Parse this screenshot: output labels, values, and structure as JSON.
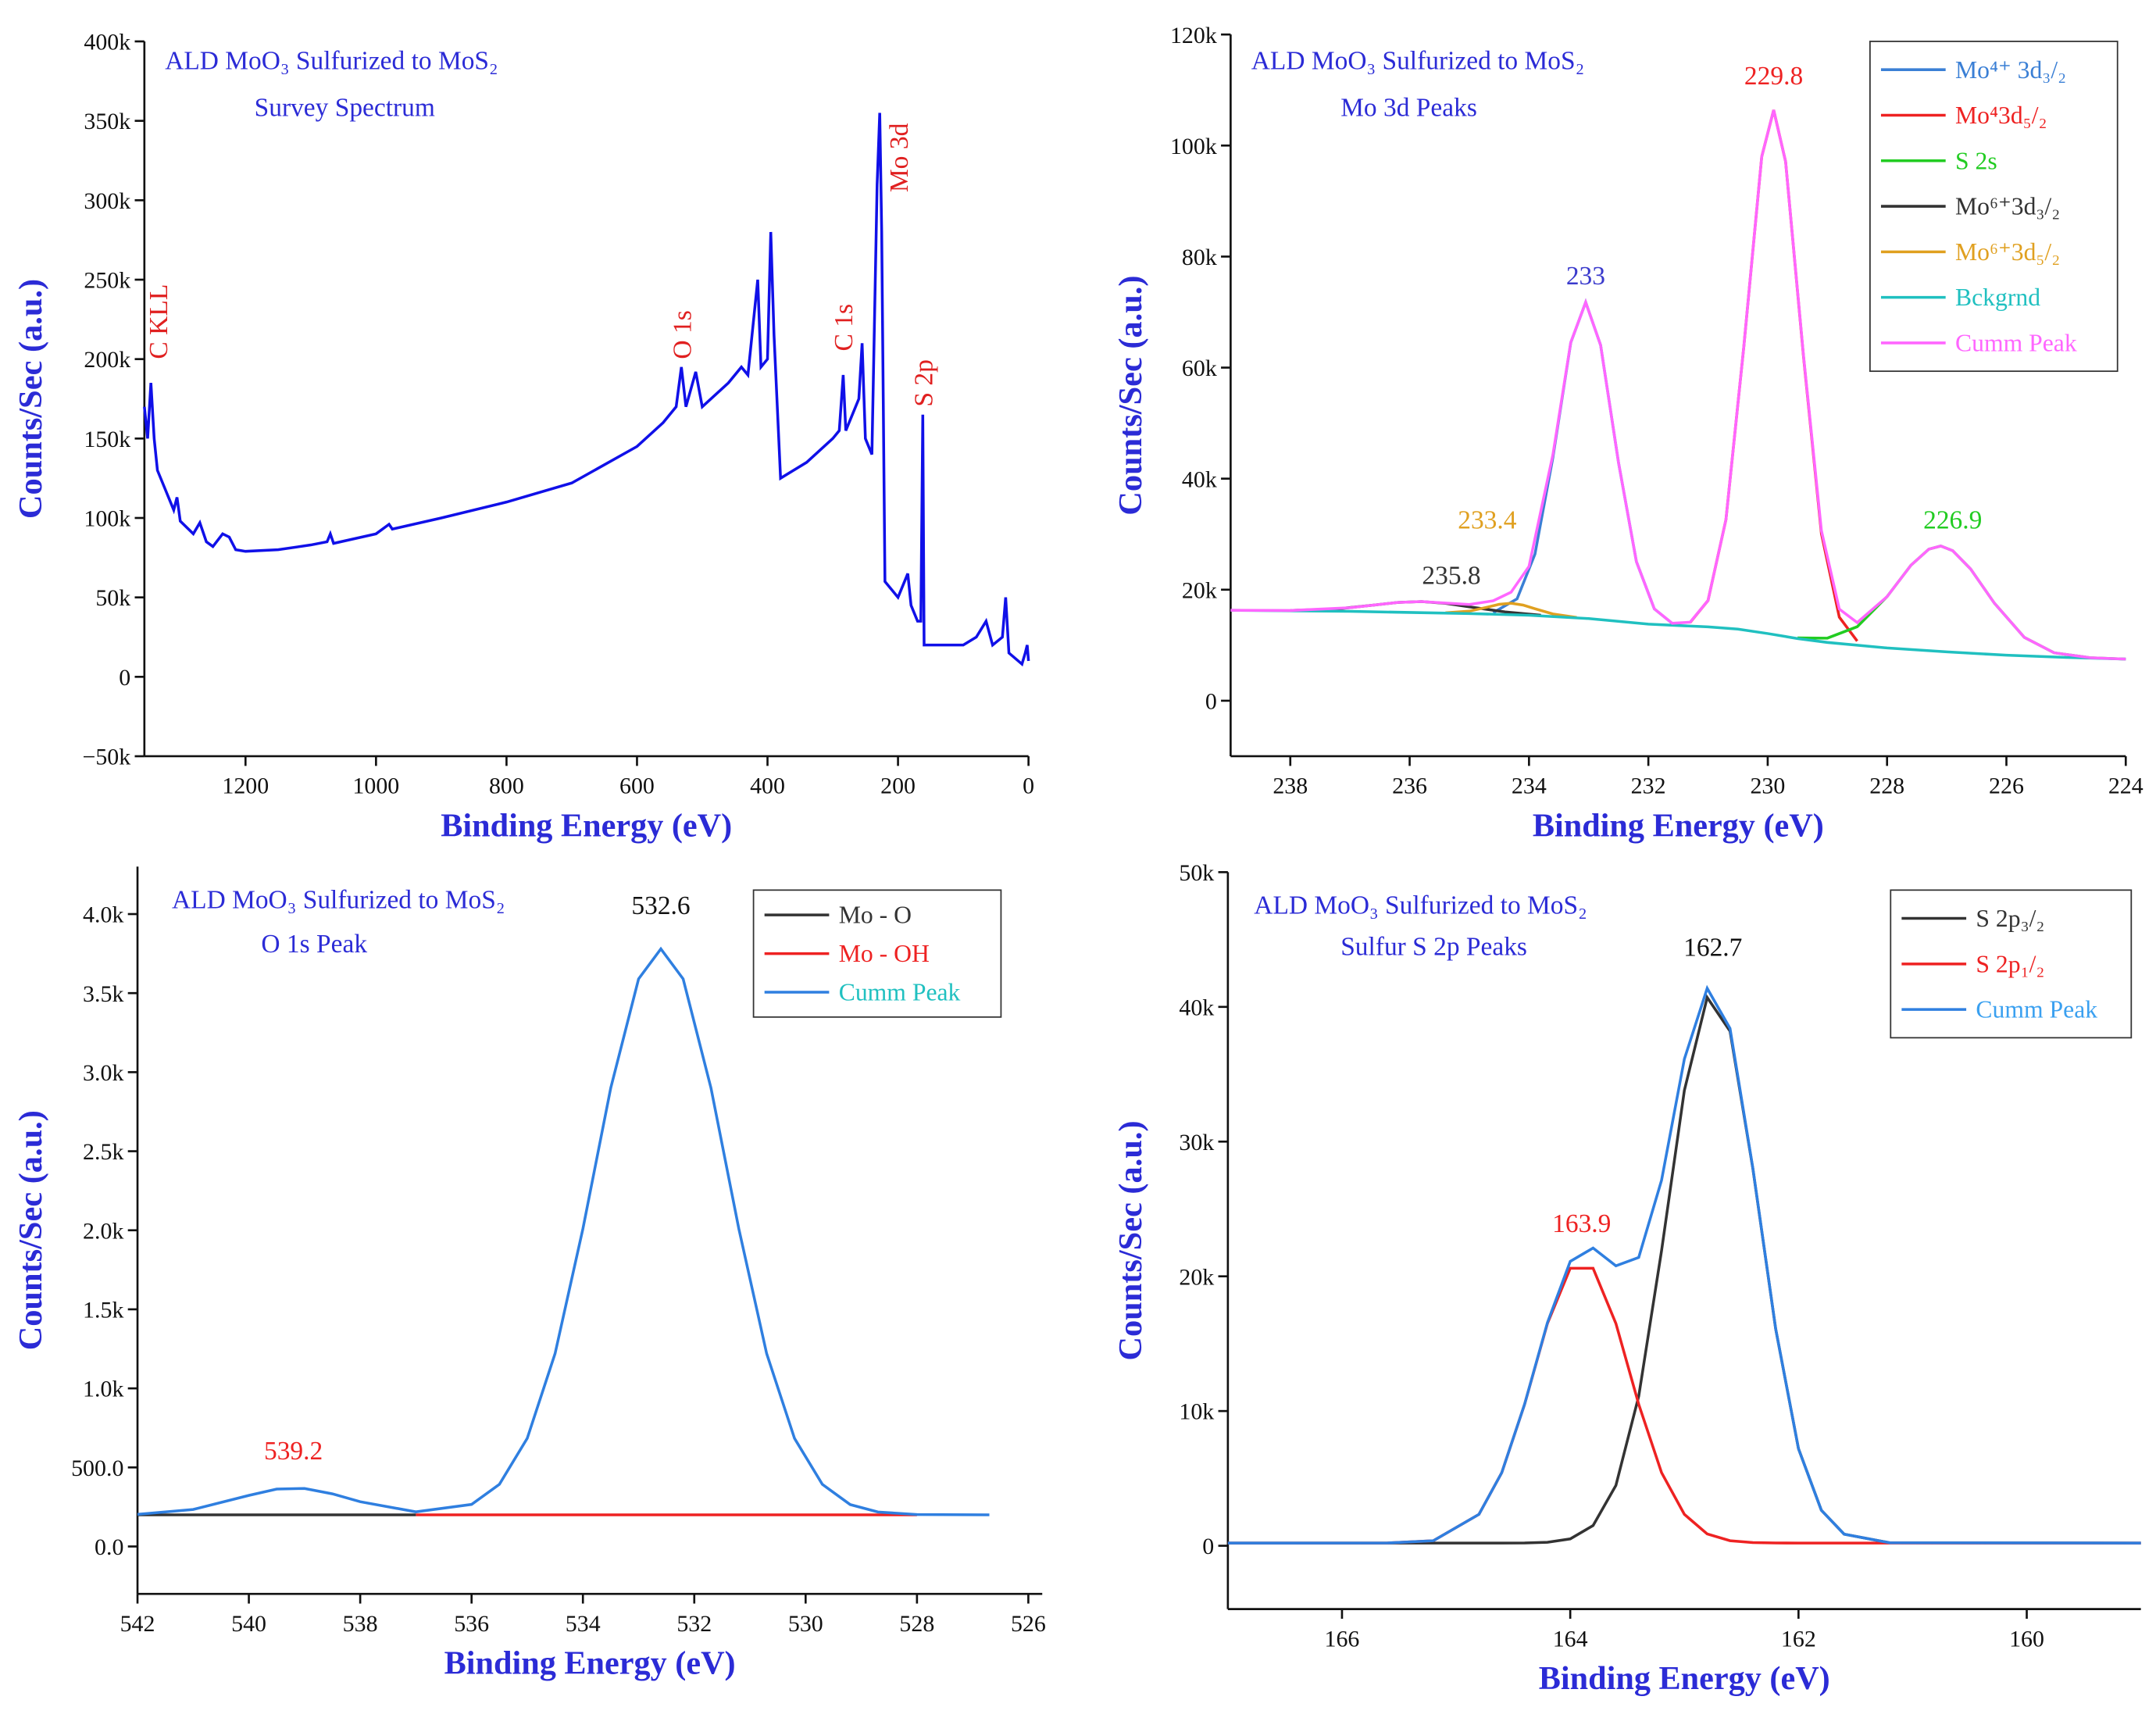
{
  "chart_data": [
    {
      "type": "line",
      "title": "ALD MoO₃ Sulfurized to MoS₂",
      "subtitle": "Survey Spectrum",
      "xlabel": "Binding Energy (eV)",
      "ylabel": "Counts/Sec (a.u.)",
      "xlim": [
        1355,
        0
      ],
      "xticks": [
        1200,
        1000,
        800,
        600,
        400,
        200,
        0
      ],
      "ylim": [
        -50000,
        400000
      ],
      "yticks": [
        {
          "value": -50000,
          "label": "−50k"
        },
        0,
        {
          "value": 50000,
          "label": "50k"
        },
        {
          "value": 100000,
          "label": "100k"
        },
        {
          "value": 150000,
          "label": "150k"
        },
        {
          "value": 200000,
          "label": "200k"
        },
        {
          "value": 250000,
          "label": "250k"
        },
        {
          "value": 300000,
          "label": "300k"
        },
        {
          "value": 350000,
          "label": "350k"
        },
        {
          "value": 400000,
          "label": "400k"
        }
      ],
      "legend": false,
      "series": [
        {
          "name": "Survey",
          "color": "#1010e8",
          "x": [
            1355,
            1350,
            1345,
            1340,
            1335,
            1320,
            1310,
            1305,
            1300,
            1280,
            1270,
            1260,
            1250,
            1235,
            1225,
            1215,
            1200,
            1150,
            1100,
            1075,
            1070,
            1065,
            1000,
            980,
            975,
            900,
            800,
            700,
            600,
            560,
            540,
            532,
            525,
            510,
            500,
            460,
            440,
            430,
            415,
            410,
            400,
            395,
            390,
            380,
            340,
            300,
            290,
            284,
            280,
            260,
            255,
            250,
            240,
            232,
            228,
            225,
            220,
            200,
            185,
            180,
            170,
            165,
            162,
            160,
            100,
            80,
            65,
            55,
            40,
            35,
            30,
            10,
            5,
            2,
            0
          ],
          "values": [
            170000,
            150000,
            185000,
            150000,
            130000,
            115000,
            105000,
            113000,
            98000,
            90000,
            97000,
            85000,
            82000,
            90000,
            88000,
            80000,
            79000,
            80000,
            83000,
            85000,
            90000,
            84000,
            90000,
            96000,
            93000,
            100000,
            110000,
            122000,
            145000,
            160000,
            170000,
            195000,
            170000,
            192000,
            170000,
            185000,
            195000,
            190000,
            250000,
            195000,
            200000,
            280000,
            215000,
            125000,
            135000,
            150000,
            155000,
            190000,
            155000,
            175000,
            210000,
            150000,
            140000,
            310000,
            355000,
            280000,
            60000,
            50000,
            65000,
            45000,
            35000,
            35000,
            165000,
            20000,
            20000,
            25000,
            35000,
            20000,
            25000,
            50000,
            15000,
            8000,
            15000,
            20000,
            10000
          ]
        }
      ],
      "annotations": [
        {
          "text": "C KLL",
          "x": 1335,
          "y": 200000,
          "color": "#e02020",
          "rotation": -90
        },
        {
          "text": "O 1s",
          "x": 532,
          "y": 200000,
          "color": "#e02020",
          "rotation": -90
        },
        {
          "text": "C 1s",
          "x": 285,
          "y": 205000,
          "color": "#e02020",
          "rotation": -90
        },
        {
          "text": "Mo 3d",
          "x": 200,
          "y": 305000,
          "color": "#e02020",
          "rotation": -90
        },
        {
          "text": "S 2p",
          "x": 162,
          "y": 170000,
          "color": "#e02020",
          "rotation": -90
        }
      ]
    },
    {
      "type": "line",
      "title": "ALD MoO₃ Sulfurized to MoS₂",
      "subtitle": "Mo 3d Peaks",
      "xlabel": "Binding Energy (eV)",
      "ylabel": "Counts/Sec (a.u.)",
      "xlim": [
        239,
        224
      ],
      "xticks": [
        238,
        236,
        234,
        232,
        230,
        228,
        226,
        224
      ],
      "ylim": [
        -10000,
        120000
      ],
      "yticks": [
        0,
        {
          "value": 20000,
          "label": "20k"
        },
        {
          "value": 40000,
          "label": "40k"
        },
        {
          "value": 60000,
          "label": "60k"
        },
        {
          "value": 80000,
          "label": "80k"
        },
        {
          "value": 100000,
          "label": "100k"
        },
        {
          "value": 120000,
          "label": "120k"
        }
      ],
      "legend": "upper right",
      "series": [
        {
          "name": "Mo⁴⁺ 3d₃/₂",
          "color": "#3a7fd5",
          "x": [
            234.6,
            234.2,
            233.9,
            233.6,
            233.3,
            233.05,
            232.8,
            232.5,
            232.2,
            231.9,
            231.6
          ],
          "values": [
            15865,
            18350,
            26400,
            43800,
            64500,
            71770,
            64050,
            42900,
            25050,
            16550,
            13930
          ]
        },
        {
          "name": "Mo⁴3d₅/₂",
          "color": "#ee2222",
          "x": [
            231.3,
            231,
            230.7,
            230.4,
            230.1,
            229.9,
            229.7,
            229.4,
            229.1,
            228.8,
            228.5
          ],
          "values": [
            14100,
            18050,
            32600,
            63800,
            98000,
            106400,
            97100,
            62000,
            30100,
            15050,
            10750
          ]
        },
        {
          "name": "S 2s",
          "color": "#22cc22",
          "x": [
            229.5,
            229,
            228.5,
            228,
            227.6,
            227.3,
            227.1,
            226.9,
            226.6,
            226.2,
            225.7,
            225.2,
            224.6,
            224
          ],
          "values": [
            11310,
            11270,
            13330,
            18750,
            24400,
            27300,
            27870,
            27030,
            23730,
            17550,
            11410,
            8630,
            7750,
            7500
          ]
        },
        {
          "name": "Mo⁶⁺3d₃/₂",
          "color": "#333333",
          "x": [
            238,
            237.2,
            236.6,
            236.2,
            235.8,
            235.4,
            235,
            234.4,
            233.8
          ],
          "values": [
            16250,
            16550,
            17230,
            17700,
            17860,
            17540,
            16910,
            15990,
            15390
          ]
        },
        {
          "name": "Mo⁶⁺3d₅/₂",
          "color": "#e0a020",
          "x": [
            235.4,
            235,
            234.7,
            234.5,
            234.3,
            234.1,
            233.9,
            233.6,
            233.2
          ],
          "values": [
            15830,
            16130,
            16850,
            17360,
            17560,
            17230,
            16560,
            15630,
            15000
          ]
        },
        {
          "name": "Bckgrnd",
          "color": "#20c0c0",
          "x": [
            239,
            238,
            237,
            236,
            235,
            234,
            233,
            232,
            231,
            230.5,
            230,
            229.5,
            229,
            228,
            227,
            226,
            225,
            224
          ],
          "values": [
            16300,
            16200,
            16100,
            15900,
            15700,
            15400,
            14800,
            13800,
            13300,
            12900,
            12100,
            11200,
            10500,
            9500,
            8800,
            8200,
            7800,
            7500
          ]
        },
        {
          "name": "Cumm Peak",
          "color": "#ff66ff",
          "x": [
            239,
            238,
            237,
            236.6,
            236.2,
            235.8,
            235.4,
            235,
            234.6,
            234.3,
            234,
            233.6,
            233.3,
            233.05,
            232.8,
            232.5,
            232.2,
            231.9,
            231.6,
            231.3,
            231,
            230.7,
            230.4,
            230.1,
            229.9,
            229.7,
            229.4,
            229.1,
            228.8,
            228.5,
            228,
            227.6,
            227.3,
            227.1,
            226.9,
            226.6,
            226.2,
            225.7,
            225.2,
            224.6,
            224
          ],
          "values": [
            16300,
            16250,
            16750,
            17230,
            17700,
            17860,
            17600,
            17340,
            18000,
            19550,
            24200,
            44300,
            64550,
            71770,
            64050,
            42900,
            25050,
            16550,
            13950,
            14150,
            18050,
            32600,
            63800,
            98000,
            106400,
            97100,
            62170,
            30640,
            16510,
            14080,
            18750,
            24400,
            27300,
            27870,
            27030,
            23730,
            17550,
            11410,
            8630,
            7750,
            7500
          ]
        }
      ],
      "annotations": [
        {
          "text": "229.8",
          "x": 229.9,
          "y": 111000,
          "color": "#ee2222"
        },
        {
          "text": "233",
          "x": 233.05,
          "y": 75000,
          "color": "#3a3acc"
        },
        {
          "text": "226.9",
          "x": 226.9,
          "y": 31000,
          "color": "#22cc22"
        },
        {
          "text": "233.4",
          "x": 234.7,
          "y": 31000,
          "color": "#e0a020"
        },
        {
          "text": "235.8",
          "x": 235.3,
          "y": 21000,
          "color": "#333333"
        }
      ]
    },
    {
      "type": "line",
      "title": "ALD MoO₃ Sulfurized to MoS₂",
      "subtitle": "O 1s Peak",
      "xlabel": "Binding Energy (eV)",
      "ylabel": "Counts/Sec (a.u.)",
      "xlim": [
        542,
        525.75
      ],
      "xticks": [
        542,
        540,
        538,
        536,
        534,
        532,
        530,
        528,
        526
      ],
      "ylim": [
        -300,
        4300
      ],
      "yticks": [
        {
          "value": 0,
          "label": "0.0"
        },
        {
          "value": 500,
          "label": "500.0"
        },
        {
          "value": 1000,
          "label": "1.0k"
        },
        {
          "value": 1500,
          "label": "1.5k"
        },
        {
          "value": 2000,
          "label": "2.0k"
        },
        {
          "value": 2500,
          "label": "2.5k"
        },
        {
          "value": 3000,
          "label": "3.0k"
        },
        {
          "value": 3500,
          "label": "3.5k"
        },
        {
          "value": 4000,
          "label": "4.0k"
        }
      ],
      "legend": "upper right",
      "series": [
        {
          "name": "Mo - O",
          "color": "#333333",
          "x": [
            542,
            537
          ],
          "values": [
            200,
            200
          ]
        },
        {
          "name": "Mo - OH",
          "color": "#ee2222",
          "x": [
            537,
            528
          ],
          "values": [
            200,
            200
          ]
        },
        {
          "name": "Cumm Peak",
          "color": "#2f7fe0",
          "label_color": "#20c0c0",
          "x": [
            542,
            541,
            540,
            539.5,
            539,
            538.5,
            538,
            537,
            536,
            535.5,
            535,
            534.5,
            534,
            533.5,
            533,
            532.6,
            532.2,
            531.7,
            531.2,
            530.7,
            530.2,
            529.7,
            529.2,
            528.7,
            528,
            526.7
          ],
          "values": [
            203,
            234,
            323,
            363,
            367,
            333,
            283,
            219,
            266,
            393,
            684,
            1220,
            2010,
            2900,
            3590,
            3780,
            3590,
            2900,
            2010,
            1220,
            684,
            393,
            265,
            218,
            202,
            200
          ]
        }
      ],
      "annotations": [
        {
          "text": "532.6",
          "x": 532.6,
          "y": 4000,
          "color": "#111111"
        },
        {
          "text": "539.2",
          "x": 539.2,
          "y": 550,
          "color": "#ee2222"
        }
      ]
    },
    {
      "type": "line",
      "title": "ALD MoO₃ Sulfurized to MoS₂",
      "subtitle": "Sulfur S 2p Peaks",
      "xlabel": "Binding Energy (eV)",
      "ylabel": "Counts/Sec (a.u.)",
      "xlim": [
        167,
        159
      ],
      "xticks": [
        166,
        164,
        162,
        160
      ],
      "ylim": [
        -4700,
        50000
      ],
      "yticks": [
        0,
        {
          "value": 10000,
          "label": "10k"
        },
        {
          "value": 20000,
          "label": "20k"
        },
        {
          "value": 30000,
          "label": "30k"
        },
        {
          "value": 40000,
          "label": "40k"
        },
        {
          "value": 50000,
          "label": "50k"
        }
      ],
      "legend": "upper right",
      "series": [
        {
          "name": "S 2p₃/₂",
          "color": "#333333",
          "x": [
            167,
            165.6,
            165.2,
            164.8,
            164.6,
            164.4,
            164.2,
            164,
            163.8,
            163.6,
            163.4,
            163.2,
            163,
            162.8,
            162.6,
            162.4,
            162.2,
            162,
            161.8,
            161.6,
            161.2,
            159
          ],
          "values": [
            200,
            200,
            200,
            200,
            200,
            208,
            257,
            510,
            1500,
            4480,
            11100,
            21900,
            33800,
            40700,
            38200,
            28000,
            16100,
            7200,
            2640,
            860,
            220,
            200
          ]
        },
        {
          "name": "S 2p₁/₂",
          "color": "#ee2222",
          "x": [
            167,
            165.6,
            165.2,
            164.8,
            164.6,
            164.4,
            164.2,
            164,
            163.8,
            163.6,
            163.4,
            163.2,
            163,
            162.8,
            162.6,
            162.4,
            162.2,
            162,
            161.8,
            161.6,
            161.2,
            159
          ],
          "values": [
            200,
            206,
            375,
            2330,
            5430,
            10500,
            16500,
            20600,
            20600,
            16500,
            10500,
            5430,
            2330,
            880,
            375,
            236,
            206,
            200,
            200,
            200,
            200,
            200
          ]
        },
        {
          "name": "Cumm Peak",
          "color": "#2f7fe0",
          "label_color": "#3aa0f0",
          "x": [
            167,
            165.6,
            165.2,
            164.8,
            164.6,
            164.4,
            164.2,
            164,
            163.8,
            163.6,
            163.4,
            163.2,
            163,
            162.8,
            162.6,
            162.4,
            162.2,
            162,
            161.8,
            161.6,
            161.2,
            159
          ],
          "values": [
            200,
            206,
            375,
            2330,
            5430,
            10508,
            16557,
            21110,
            22100,
            20780,
            21400,
            27130,
            36130,
            41380,
            38400,
            28036,
            16106,
            7200,
            2640,
            860,
            220,
            200
          ]
        }
      ],
      "annotations": [
        {
          "text": "162.7",
          "x": 162.75,
          "y": 43800,
          "color": "#111111"
        },
        {
          "text": "163.9",
          "x": 163.9,
          "y": 23300,
          "color": "#ee2222"
        }
      ]
    }
  ]
}
